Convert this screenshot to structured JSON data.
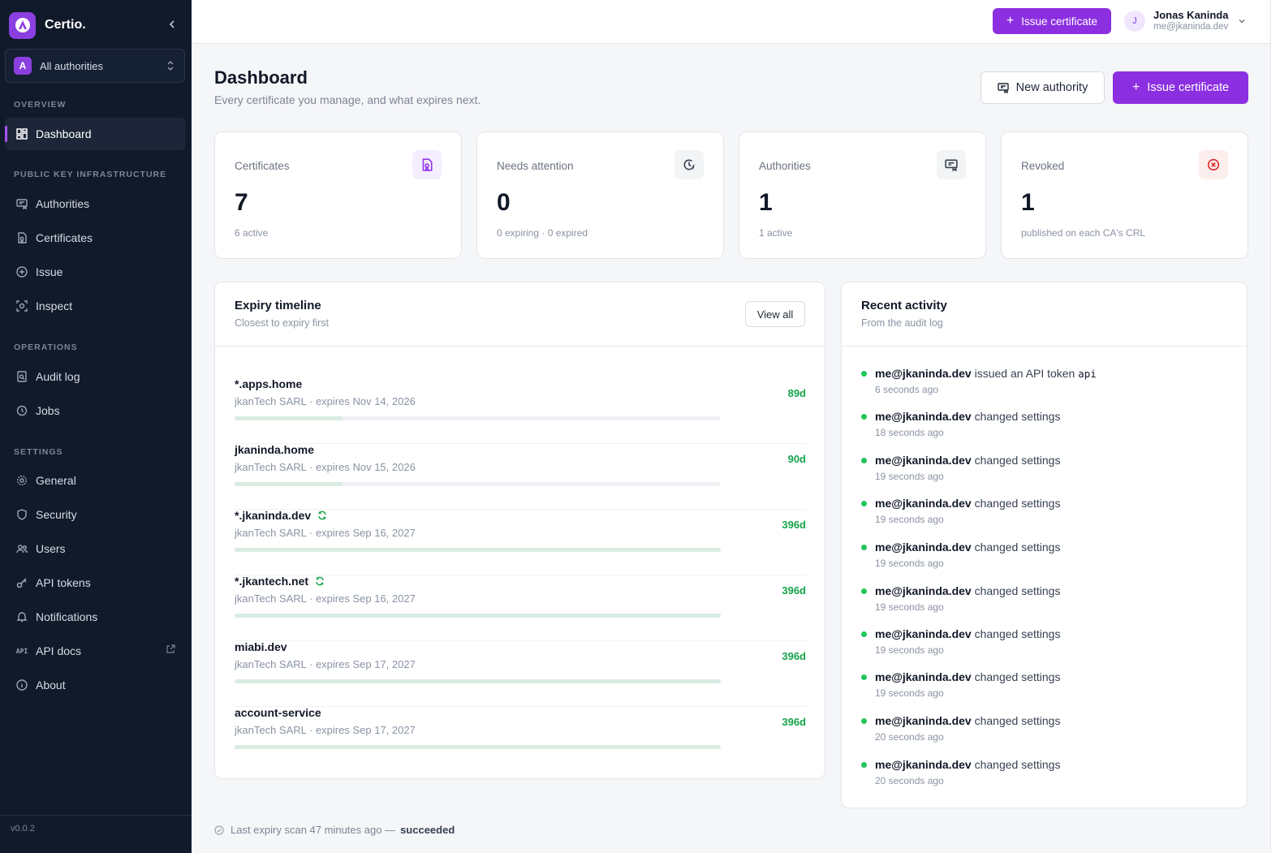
{
  "brand": {
    "name": "Certio."
  },
  "authority_selector": {
    "badge": "A",
    "label": "All authorities"
  },
  "sidebar": {
    "sections": {
      "overview": "OVERVIEW",
      "pki": "PUBLIC KEY INFRASTRUCTURE",
      "operations": "OPERATIONS",
      "settings": "SETTINGS"
    },
    "items": [
      {
        "label": "Dashboard",
        "icon": "dashboard-icon"
      },
      {
        "label": "Authorities",
        "icon": "authority-icon"
      },
      {
        "label": "Certificates",
        "icon": "certificate-icon"
      },
      {
        "label": "Issue",
        "icon": "plus-circle-icon"
      },
      {
        "label": "Inspect",
        "icon": "scan-icon"
      },
      {
        "label": "Audit log",
        "icon": "log-icon"
      },
      {
        "label": "Jobs",
        "icon": "clock-icon"
      },
      {
        "label": "General",
        "icon": "gear-icon"
      },
      {
        "label": "Security",
        "icon": "shield-icon"
      },
      {
        "label": "Users",
        "icon": "users-icon"
      },
      {
        "label": "API tokens",
        "icon": "key-icon"
      },
      {
        "label": "Notifications",
        "icon": "bell-icon"
      },
      {
        "label": "API docs",
        "icon": "api-icon"
      },
      {
        "label": "About",
        "icon": "info-icon"
      }
    ],
    "version": "v0.0.2"
  },
  "topbar": {
    "issue_label": "Issue certificate",
    "user": {
      "initial": "J",
      "name": "Jonas Kaninda",
      "email": "me@jkaninda.dev"
    }
  },
  "header": {
    "title": "Dashboard",
    "subtitle": "Every certificate you manage, and what expires next.",
    "new_authority_label": "New authority",
    "issue_label": "Issue certificate"
  },
  "stats": [
    {
      "label": "Certificates",
      "value": "7",
      "sub": "6 active",
      "icon": "certificate-icon",
      "color": "#9333ea"
    },
    {
      "label": "Needs attention",
      "value": "0",
      "sub": "0 expiring · 0 expired",
      "icon": "clock-alert-icon",
      "color": "#374151"
    },
    {
      "label": "Authorities",
      "value": "1",
      "sub": "1 active",
      "icon": "authority-icon",
      "color": "#374151"
    },
    {
      "label": "Revoked",
      "value": "1",
      "sub": "published on each CA's CRL",
      "icon": "x-circle-icon",
      "color": "#dc2626"
    }
  ],
  "expiry": {
    "title": "Expiry timeline",
    "subtitle": "Closest to expiry first",
    "view_all": "View all",
    "rows": [
      {
        "name": "*.apps.home",
        "meta": "jkanTech SARL · expires Nov 14, 2026",
        "days": "89d",
        "renew": false
      },
      {
        "name": "jkaninda.home",
        "meta": "jkanTech SARL · expires Nov 15, 2026",
        "days": "90d",
        "renew": false
      },
      {
        "name": "*.jkaninda.dev",
        "meta": "jkanTech SARL · expires Sep 16, 2027",
        "days": "396d",
        "renew": true
      },
      {
        "name": "*.jkantech.net",
        "meta": "jkanTech SARL · expires Sep 16, 2027",
        "days": "396d",
        "renew": true
      },
      {
        "name": "miabi.dev",
        "meta": "jkanTech SARL · expires Sep 17, 2027",
        "days": "396d",
        "renew": false
      },
      {
        "name": "account-service",
        "meta": "jkanTech SARL · expires Sep 17, 2027",
        "days": "396d",
        "renew": false
      }
    ]
  },
  "activity": {
    "title": "Recent activity",
    "subtitle": "From the audit log",
    "items": [
      {
        "user": "me@jkaninda.dev",
        "action": "issued an API token",
        "code": "api",
        "time": "6 seconds ago"
      },
      {
        "user": "me@jkaninda.dev",
        "action": "changed settings",
        "code": "",
        "time": "18 seconds ago"
      },
      {
        "user": "me@jkaninda.dev",
        "action": "changed settings",
        "code": "",
        "time": "19 seconds ago"
      },
      {
        "user": "me@jkaninda.dev",
        "action": "changed settings",
        "code": "",
        "time": "19 seconds ago"
      },
      {
        "user": "me@jkaninda.dev",
        "action": "changed settings",
        "code": "",
        "time": "19 seconds ago"
      },
      {
        "user": "me@jkaninda.dev",
        "action": "changed settings",
        "code": "",
        "time": "19 seconds ago"
      },
      {
        "user": "me@jkaninda.dev",
        "action": "changed settings",
        "code": "",
        "time": "19 seconds ago"
      },
      {
        "user": "me@jkaninda.dev",
        "action": "changed settings",
        "code": "",
        "time": "19 seconds ago"
      },
      {
        "user": "me@jkaninda.dev",
        "action": "changed settings",
        "code": "",
        "time": "20 seconds ago"
      },
      {
        "user": "me@jkaninda.dev",
        "action": "changed settings",
        "code": "",
        "time": "20 seconds ago"
      }
    ]
  },
  "footer": {
    "scan_text": "Last expiry scan 47 minutes ago —",
    "scan_status": "succeeded"
  }
}
